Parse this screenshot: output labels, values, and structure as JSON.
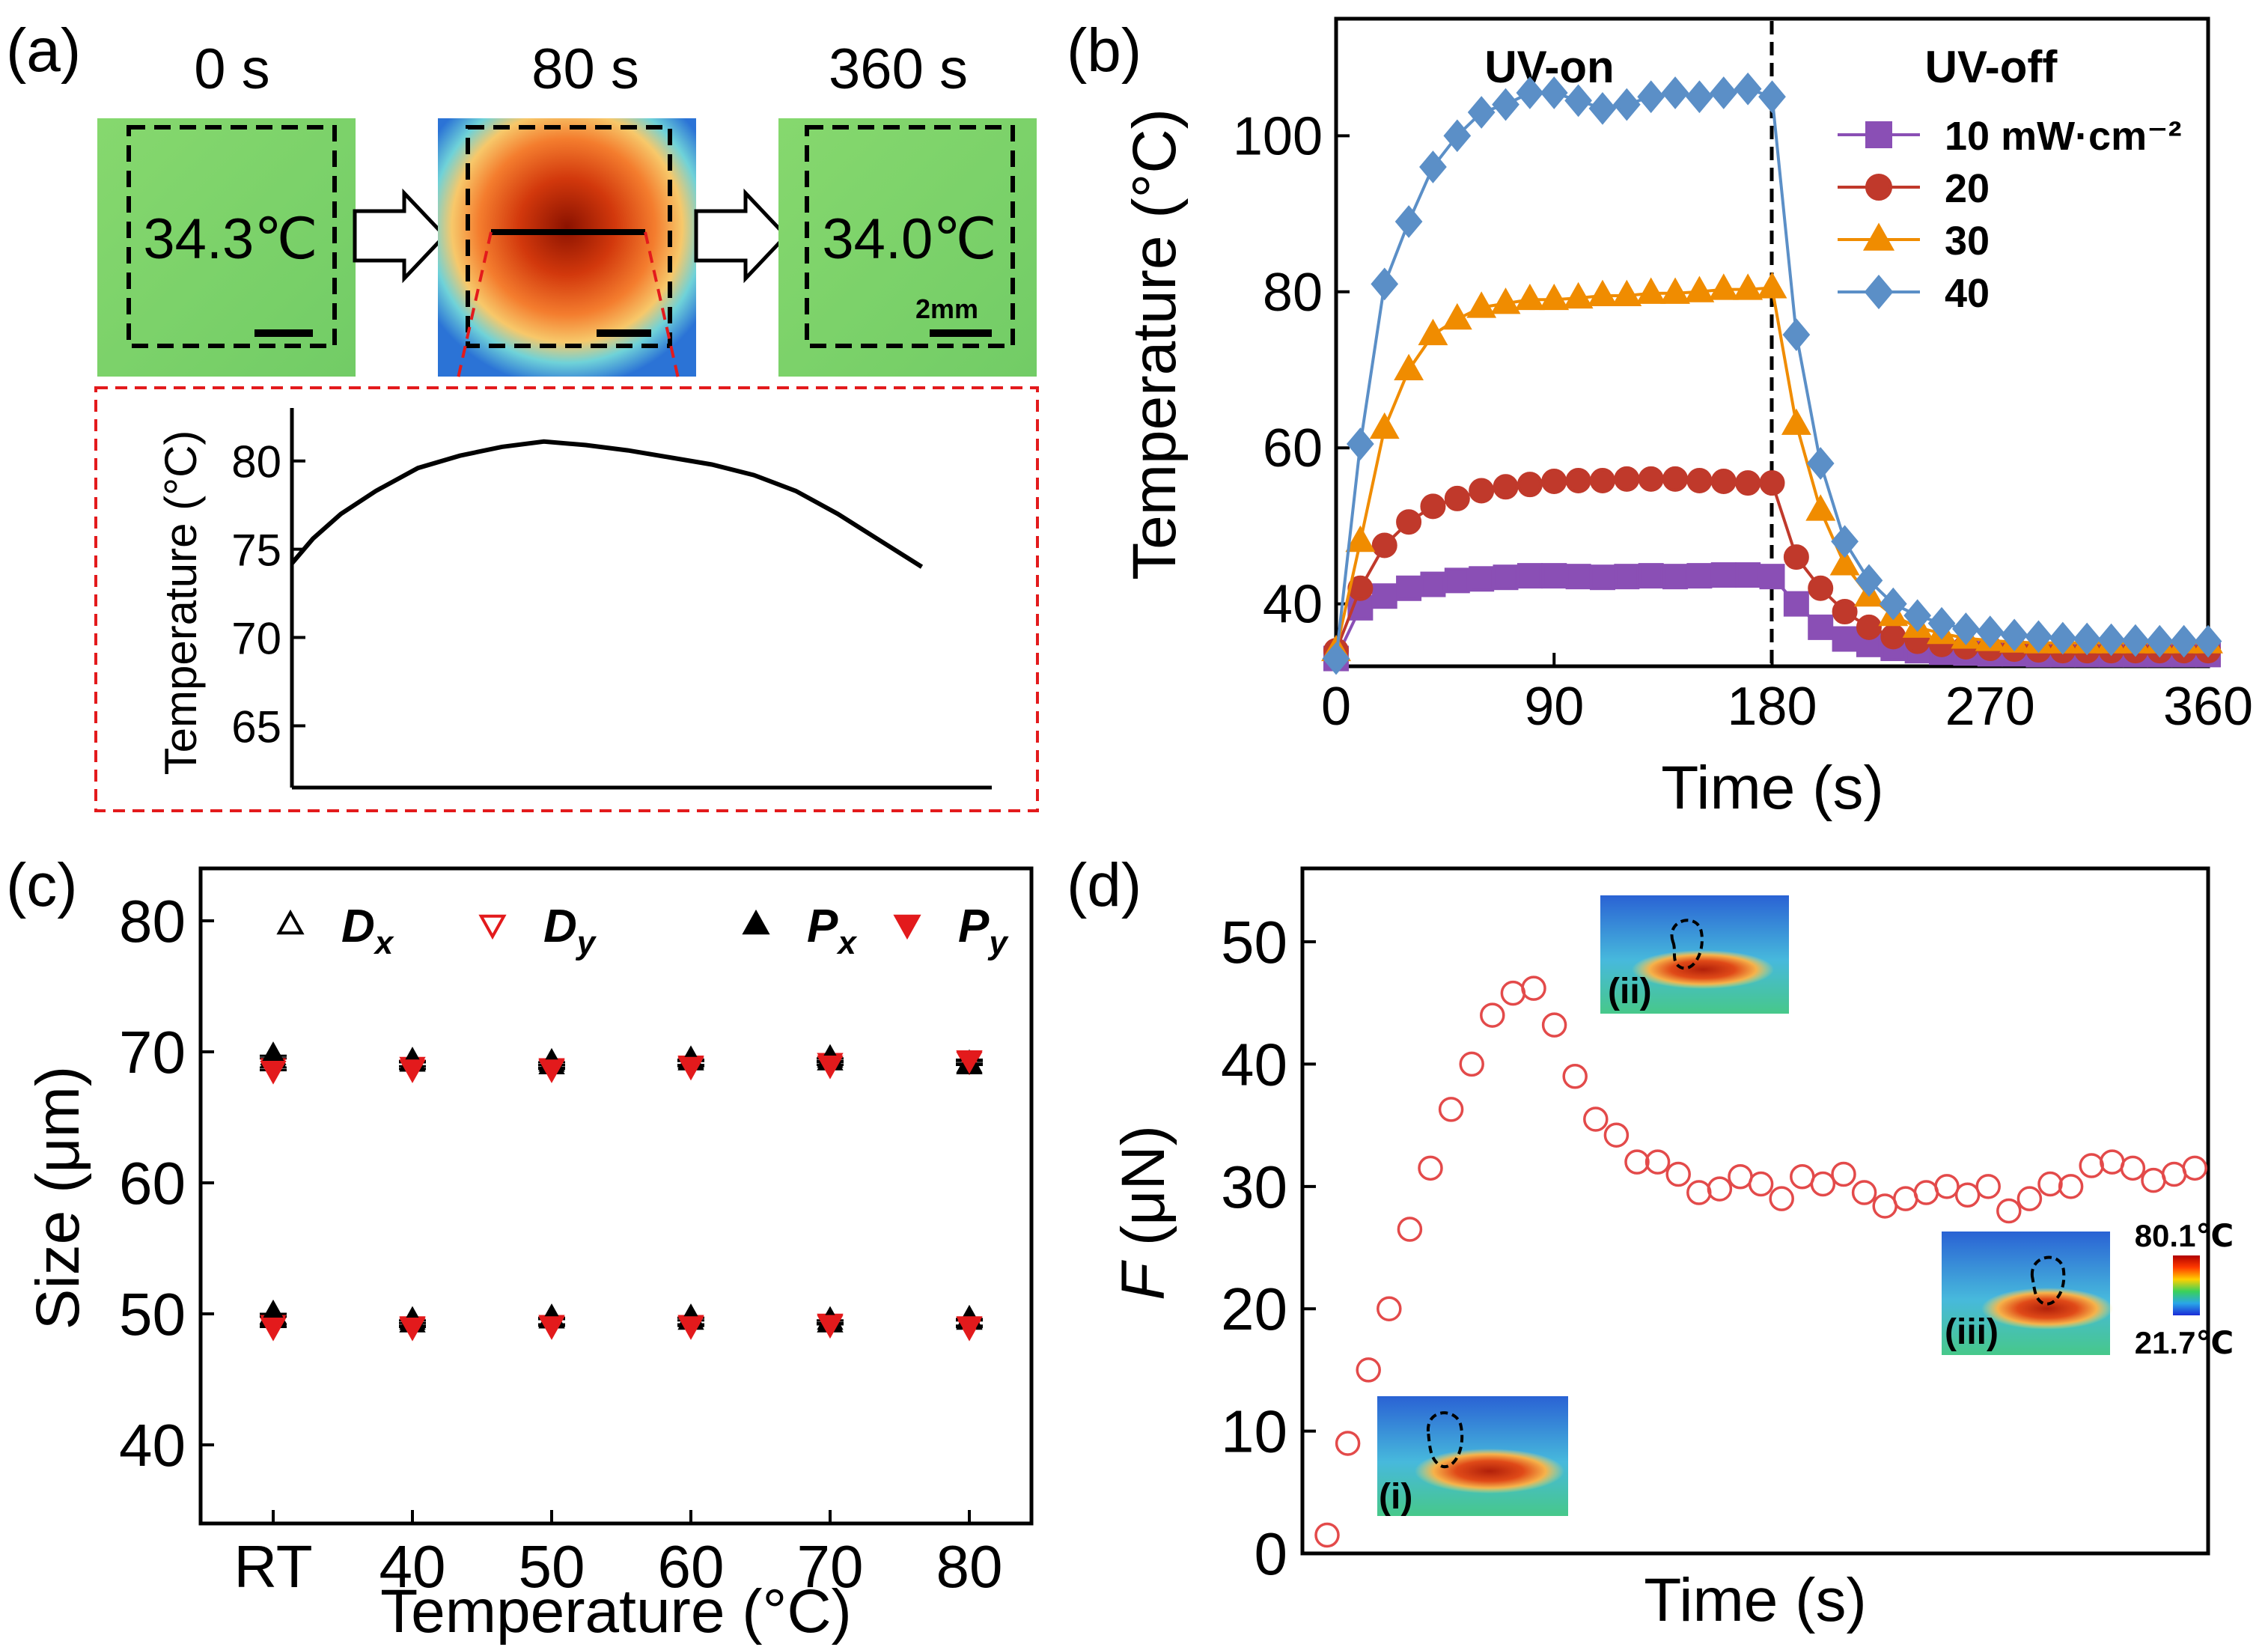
{
  "chart_data": [
    {
      "panel": "(a)",
      "type": "line",
      "snapshots": [
        {
          "time_label": "0 s",
          "temp_label": "34.3°C",
          "color": "#7ad36a"
        },
        {
          "time_label": "80 s",
          "temp_label": "",
          "color": "#e04a1a"
        },
        {
          "time_label": "360 s",
          "temp_label": "34.0°C",
          "color": "#7ad36a"
        }
      ],
      "scale_bar_label": "2mm",
      "ylabel": "Temperature (°C)",
      "ylim": [
        61.5,
        83
      ],
      "yticks": [
        65,
        70,
        75,
        80
      ],
      "xlim": [
        0,
        100
      ],
      "x": [
        0,
        3,
        7,
        12,
        18,
        24,
        30,
        36,
        42,
        48,
        54,
        60,
        66,
        72,
        78,
        84,
        90
      ],
      "y": [
        74.2,
        75.6,
        77.0,
        78.3,
        79.6,
        80.3,
        80.8,
        81.1,
        80.9,
        80.6,
        80.2,
        79.8,
        79.2,
        78.3,
        77.0,
        75.5,
        74.0
      ]
    },
    {
      "panel": "(b)",
      "type": "line",
      "xlabel": "Time (s)",
      "ylabel": "Temperature (°C)",
      "xlim": [
        0,
        360
      ],
      "ylim": [
        32,
        115
      ],
      "xticks": [
        0,
        90,
        180,
        270,
        360
      ],
      "yticks": [
        40,
        60,
        80,
        100
      ],
      "annotations": [
        "UV-on",
        "UV-off"
      ],
      "uv_switch_time": 180,
      "legend": "top-right",
      "time": [
        0,
        10,
        20,
        30,
        40,
        50,
        60,
        70,
        80,
        90,
        100,
        110,
        120,
        130,
        140,
        150,
        160,
        170,
        180,
        190,
        200,
        210,
        220,
        230,
        240,
        250,
        260,
        270,
        280,
        290,
        300,
        310,
        320,
        330,
        340,
        350,
        360
      ],
      "series": [
        {
          "name": "10 mW·cm⁻²",
          "marker": "square",
          "color": "#8a4fb5",
          "values": [
            33,
            39.5,
            41,
            42,
            42.5,
            43,
            43.2,
            43.4,
            43.6,
            43.6,
            43.5,
            43.4,
            43.5,
            43.6,
            43.5,
            43.6,
            43.7,
            43.7,
            43.5,
            40,
            37,
            35.5,
            34.8,
            34.3,
            34,
            33.8,
            33.7,
            33.6,
            33.6,
            33.5,
            33.5,
            33.5,
            33.5,
            33.5,
            33.5,
            33.5,
            33.5
          ]
        },
        {
          "name": "20",
          "marker": "circle",
          "color": "#c0392b",
          "values": [
            34,
            42,
            47.5,
            50.5,
            52.5,
            53.5,
            54.5,
            55,
            55.3,
            55.7,
            55.8,
            55.8,
            56,
            56,
            56,
            55.8,
            55.7,
            55.5,
            55.5,
            46,
            42,
            39,
            37,
            35.8,
            35.2,
            34.8,
            34.5,
            34.3,
            34.2,
            34.1,
            34,
            34,
            34,
            34,
            34,
            34,
            34
          ]
        },
        {
          "name": "30",
          "marker": "triangle",
          "color": "#f08c00",
          "values": [
            34,
            48,
            62.5,
            70,
            74.5,
            76.5,
            78,
            78.5,
            79,
            79,
            79.2,
            79.5,
            79.5,
            79.8,
            79.8,
            80,
            80.3,
            80.3,
            80.5,
            63,
            52,
            45,
            41,
            38.5,
            37,
            36.2,
            35.6,
            35.3,
            35.1,
            35,
            35,
            35,
            35,
            35,
            35,
            35,
            35
          ]
        },
        {
          "name": "40",
          "marker": "diamond",
          "color": "#5b8fc7",
          "values": [
            33,
            60.5,
            81,
            89,
            96,
            100,
            103,
            104,
            105.5,
            105.5,
            104.5,
            103.5,
            104,
            105,
            105.5,
            105,
            105.5,
            106,
            105,
            74.5,
            58,
            48,
            43,
            40,
            38.5,
            37.5,
            36.8,
            36.4,
            36,
            35.8,
            35.6,
            35.5,
            35.4,
            35.3,
            35.2,
            35.2,
            35.2
          ]
        }
      ]
    },
    {
      "panel": "(c)",
      "type": "scatter",
      "xlabel": "Temperature (°C)",
      "ylabel": "Size (μm)",
      "ylim": [
        34,
        84
      ],
      "yticks": [
        40,
        50,
        60,
        70,
        80
      ],
      "categories": [
        "RT",
        "40",
        "50",
        "60",
        "70",
        "80"
      ],
      "legend": "top",
      "series": [
        {
          "name": "Dx",
          "marker": "open-up-triangle",
          "color": "#000000",
          "values_upper": [
            69.5,
            69.2,
            69.0,
            69.3,
            69.3,
            69.1
          ],
          "values_lower": [
            49.8,
            49.3,
            49.6,
            49.5,
            49.3,
            49.5
          ]
        },
        {
          "name": "Dy",
          "marker": "open-down-triangle",
          "color": "#e31a1c",
          "values_upper": [
            68.8,
            68.9,
            68.8,
            69.0,
            69.2,
            69.3
          ],
          "values_lower": [
            49.2,
            49.1,
            49.2,
            49.2,
            49.3,
            49.0
          ]
        },
        {
          "name": "Px",
          "marker": "filled-up-triangle",
          "color": "#000000",
          "values_upper": [
            69.7,
            69.3,
            69.2,
            69.4,
            69.5,
            69.0
          ],
          "values_lower": [
            50.0,
            49.5,
            49.7,
            49.7,
            49.5,
            49.6
          ]
        },
        {
          "name": "Py",
          "marker": "filled-down-triangle",
          "color": "#e31a1c",
          "values_upper": [
            68.6,
            68.7,
            68.7,
            68.9,
            69.0,
            69.4
          ],
          "values_lower": [
            49.0,
            49.0,
            49.1,
            49.1,
            49.2,
            49.1
          ]
        }
      ]
    },
    {
      "panel": "(d)",
      "type": "scatter",
      "xlabel": "Time (s)",
      "ylabel": "F (μN)",
      "ylim": [
        0,
        56
      ],
      "yticks": [
        0,
        10,
        20,
        30,
        40,
        50
      ],
      "color": "#e34a4a",
      "x": [
        1,
        2,
        3,
        4,
        5,
        6,
        7,
        8,
        9,
        10,
        11,
        12,
        13,
        14,
        15,
        16,
        17,
        18,
        19,
        20,
        21,
        22,
        23,
        24,
        25,
        26,
        27,
        28,
        29,
        30,
        31,
        32,
        33,
        34,
        35,
        36,
        37,
        38,
        39,
        40,
        41,
        42,
        43
      ],
      "values": [
        1.5,
        9,
        15,
        20,
        26.5,
        31.5,
        36.3,
        40,
        44,
        45.8,
        46.2,
        43.2,
        39,
        35.5,
        34.2,
        32,
        32,
        31,
        29.5,
        29.8,
        30.8,
        30.2,
        29,
        30.8,
        30.2,
        31,
        29.5,
        28.4,
        29,
        29.5,
        30,
        29.3,
        30,
        28,
        29,
        30.2,
        30,
        31.7,
        32,
        31.5,
        30.5,
        31,
        31.5
      ],
      "insets": [
        {
          "label": "(i)",
          "color": "#2a6fd6"
        },
        {
          "label": "(ii)",
          "color": "#2a6fd6"
        },
        {
          "label": "(iii)",
          "color": "#2a6fd6"
        }
      ],
      "colorbar": {
        "max_label": "80.1℃",
        "min_label": "21.7℃"
      }
    }
  ],
  "panels": {
    "a": {
      "label": "(a)",
      "t0": "0 s",
      "t1": "80 s",
      "t2": "360 s",
      "temp0": "34.3℃",
      "temp2": "34.0℃",
      "scale": "2mm",
      "ylabel": "Temperature (°C)"
    },
    "b": {
      "label": "(b)",
      "uv_on": "UV-on",
      "uv_off": "UV-off",
      "legend": [
        "10 mW·cm⁻²",
        "20",
        "30",
        "40"
      ],
      "xlabel": "Time (s)",
      "ylabel": "Temperature (°C)"
    },
    "c": {
      "label": "(c)",
      "legend": [
        "Dx",
        "Dy",
        "Px",
        "Py"
      ],
      "xlabel": "Temperature (°C)",
      "ylabel": "Size (μm)"
    },
    "d": {
      "label": "(d)",
      "xlabel": "Time (s)",
      "ylabel": "F (μN)",
      "inset_labels": [
        "(i)",
        "(ii)",
        "(iii)"
      ],
      "cbar_max": "80.1℃",
      "cbar_min": "21.7℃"
    }
  }
}
